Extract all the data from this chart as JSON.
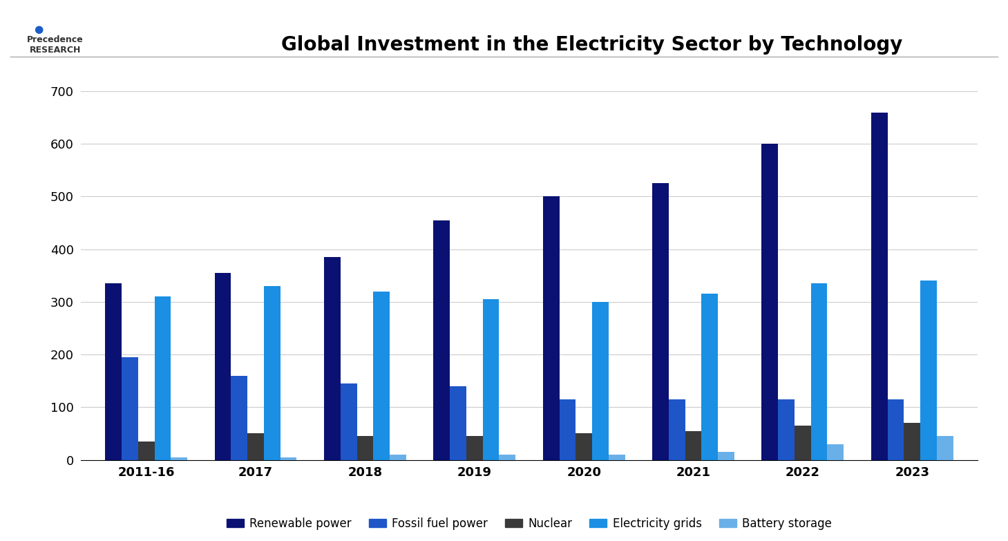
{
  "title": "Global Investment in the Electricity Sector by Technology",
  "categories": [
    "2011-16",
    "2017",
    "2018",
    "2019",
    "2020",
    "2021",
    "2022",
    "2023"
  ],
  "series": {
    "Renewable power": [
      335,
      355,
      385,
      455,
      500,
      525,
      600,
      660
    ],
    "Fossil fuel power": [
      195,
      160,
      145,
      140,
      115,
      115,
      115,
      115
    ],
    "Nuclear": [
      35,
      50,
      45,
      45,
      50,
      55,
      65,
      70
    ],
    "Electricity grids": [
      310,
      330,
      320,
      305,
      300,
      315,
      335,
      340
    ],
    "Battery storage": [
      5,
      5,
      10,
      10,
      10,
      15,
      30,
      45
    ]
  },
  "colors": {
    "Renewable power": "#0a1172",
    "Fossil fuel power": "#1e56c8",
    "Nuclear": "#3a3a3a",
    "Electricity grids": "#1a8fe3",
    "Battery storage": "#6ab0e8"
  },
  "ylim": [
    0,
    750
  ],
  "yticks": [
    0,
    100,
    200,
    300,
    400,
    500,
    600,
    700
  ],
  "background_color": "#ffffff",
  "plot_bg_color": "#ffffff",
  "grid_color": "#cccccc",
  "title_fontsize": 20,
  "legend_fontsize": 12,
  "tick_fontsize": 13
}
